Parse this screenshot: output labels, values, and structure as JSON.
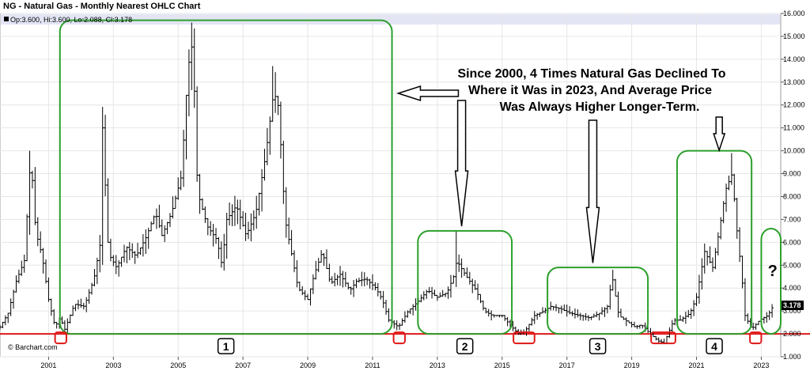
{
  "chart_data": {
    "type": "line",
    "title": "NG - Natural Gas - Monthly Nearest OHLC Chart",
    "ohlc_label": "Op:3.600, Hi:3.600, Lo:2.088, Cl:3.178",
    "source": "© Barchart.com",
    "last_value_label": "3.178",
    "ylim": [
      1.0,
      16.0
    ],
    "xlim": [
      2000.0,
      2024.1
    ],
    "y_ticks": [
      "1.000",
      "2.000",
      "3.000",
      "4.000",
      "5.000",
      "6.000",
      "7.000",
      "8.000",
      "9.000",
      "10.000",
      "11.000",
      "12.000",
      "13.000",
      "14.000",
      "15.000",
      "16.000"
    ],
    "x_ticks": [
      "2001",
      "2003",
      "2005",
      "2007",
      "2009",
      "2011",
      "2013",
      "2015",
      "2017",
      "2019",
      "2021",
      "2023"
    ],
    "grid": true,
    "series": [
      {
        "values": [
          {
            "x": 2000.0,
            "y": 2.3
          },
          {
            "x": 2000.25,
            "y": 2.9
          },
          {
            "x": 2000.5,
            "y": 4.3
          },
          {
            "x": 2000.75,
            "y": 5.2
          },
          {
            "x": 2000.95,
            "y": 9.8
          },
          {
            "x": 2001.1,
            "y": 6.5
          },
          {
            "x": 2001.3,
            "y": 5.4
          },
          {
            "x": 2001.5,
            "y": 3.5
          },
          {
            "x": 2001.7,
            "y": 2.3
          },
          {
            "x": 2001.85,
            "y": 2.7
          },
          {
            "x": 2002.0,
            "y": 2.2
          },
          {
            "x": 2002.3,
            "y": 3.3
          },
          {
            "x": 2002.6,
            "y": 3.2
          },
          {
            "x": 2002.9,
            "y": 4.4
          },
          {
            "x": 2003.1,
            "y": 6.0
          },
          {
            "x": 2003.15,
            "y": 11.5
          },
          {
            "x": 2003.35,
            "y": 5.5
          },
          {
            "x": 2003.6,
            "y": 4.9
          },
          {
            "x": 2003.9,
            "y": 5.8
          },
          {
            "x": 2004.2,
            "y": 5.4
          },
          {
            "x": 2004.5,
            "y": 6.2
          },
          {
            "x": 2004.8,
            "y": 7.3
          },
          {
            "x": 2005.0,
            "y": 6.3
          },
          {
            "x": 2005.3,
            "y": 7.3
          },
          {
            "x": 2005.6,
            "y": 8.9
          },
          {
            "x": 2005.8,
            "y": 13.6
          },
          {
            "x": 2005.95,
            "y": 14.8
          },
          {
            "x": 2006.1,
            "y": 8.2
          },
          {
            "x": 2006.4,
            "y": 6.7
          },
          {
            "x": 2006.7,
            "y": 6.1
          },
          {
            "x": 2006.85,
            "y": 5.0
          },
          {
            "x": 2007.0,
            "y": 7.0
          },
          {
            "x": 2007.3,
            "y": 7.6
          },
          {
            "x": 2007.6,
            "y": 6.3
          },
          {
            "x": 2007.9,
            "y": 7.3
          },
          {
            "x": 2008.2,
            "y": 9.8
          },
          {
            "x": 2008.45,
            "y": 12.6
          },
          {
            "x": 2008.6,
            "y": 11.9
          },
          {
            "x": 2008.8,
            "y": 7.0
          },
          {
            "x": 2009.0,
            "y": 5.5
          },
          {
            "x": 2009.2,
            "y": 4.0
          },
          {
            "x": 2009.5,
            "y": 3.5
          },
          {
            "x": 2009.7,
            "y": 4.6
          },
          {
            "x": 2009.95,
            "y": 5.6
          },
          {
            "x": 2010.2,
            "y": 4.2
          },
          {
            "x": 2010.5,
            "y": 4.6
          },
          {
            "x": 2010.8,
            "y": 3.9
          },
          {
            "x": 2011.0,
            "y": 4.3
          },
          {
            "x": 2011.3,
            "y": 4.4
          },
          {
            "x": 2011.6,
            "y": 4.0
          },
          {
            "x": 2011.8,
            "y": 3.5
          },
          {
            "x": 2012.0,
            "y": 2.6
          },
          {
            "x": 2012.3,
            "y": 2.3
          },
          {
            "x": 2012.6,
            "y": 3.0
          },
          {
            "x": 2012.9,
            "y": 3.4
          },
          {
            "x": 2013.2,
            "y": 3.9
          },
          {
            "x": 2013.5,
            "y": 3.6
          },
          {
            "x": 2013.8,
            "y": 3.8
          },
          {
            "x": 2014.0,
            "y": 4.5
          },
          {
            "x": 2014.1,
            "y": 5.2
          },
          {
            "x": 2014.4,
            "y": 4.5
          },
          {
            "x": 2014.7,
            "y": 3.9
          },
          {
            "x": 2014.95,
            "y": 3.0
          },
          {
            "x": 2015.2,
            "y": 2.8
          },
          {
            "x": 2015.5,
            "y": 2.8
          },
          {
            "x": 2015.8,
            "y": 2.3
          },
          {
            "x": 2016.0,
            "y": 2.0
          },
          {
            "x": 2016.2,
            "y": 2.1
          },
          {
            "x": 2016.5,
            "y": 2.8
          },
          {
            "x": 2016.8,
            "y": 3.0
          },
          {
            "x": 2017.0,
            "y": 3.2
          },
          {
            "x": 2017.3,
            "y": 3.1
          },
          {
            "x": 2017.6,
            "y": 2.9
          },
          {
            "x": 2017.9,
            "y": 2.8
          },
          {
            "x": 2018.2,
            "y": 2.7
          },
          {
            "x": 2018.5,
            "y": 2.9
          },
          {
            "x": 2018.75,
            "y": 3.2
          },
          {
            "x": 2018.9,
            "y": 4.5
          },
          {
            "x": 2019.1,
            "y": 2.8
          },
          {
            "x": 2019.3,
            "y": 2.6
          },
          {
            "x": 2019.6,
            "y": 2.3
          },
          {
            "x": 2019.8,
            "y": 2.4
          },
          {
            "x": 2020.0,
            "y": 2.1
          },
          {
            "x": 2020.3,
            "y": 1.7
          },
          {
            "x": 2020.5,
            "y": 1.6
          },
          {
            "x": 2020.8,
            "y": 2.6
          },
          {
            "x": 2021.0,
            "y": 2.6
          },
          {
            "x": 2021.3,
            "y": 2.9
          },
          {
            "x": 2021.5,
            "y": 3.6
          },
          {
            "x": 2021.75,
            "y": 5.6
          },
          {
            "x": 2022.0,
            "y": 4.9
          },
          {
            "x": 2022.2,
            "y": 6.5
          },
          {
            "x": 2022.4,
            "y": 8.3
          },
          {
            "x": 2022.6,
            "y": 9.0
          },
          {
            "x": 2022.75,
            "y": 6.5
          },
          {
            "x": 2022.9,
            "y": 4.5
          },
          {
            "x": 2023.0,
            "y": 2.8
          },
          {
            "x": 2023.2,
            "y": 2.2
          },
          {
            "x": 2023.45,
            "y": 2.6
          },
          {
            "x": 2023.7,
            "y": 2.8
          },
          {
            "x": 2023.85,
            "y": 3.178
          }
        ]
      }
    ],
    "annotations": {
      "note_lines": [
        "Since 2000, 4 Times Natural Gas Declined To",
        "Where it Was in 2023, And Average Price",
        "Was Always Higher Longer-Term."
      ],
      "support_level": 2.0,
      "boxes": [
        {
          "label": "1",
          "x0": 2001.85,
          "x1": 2012.1,
          "y0": 2.0,
          "y1": 15.7
        },
        {
          "label": "2",
          "x0": 2012.9,
          "x1": 2015.8,
          "y0": 2.0,
          "y1": 6.5
        },
        {
          "label": "3",
          "x0": 2016.9,
          "x1": 2020.0,
          "y0": 2.0,
          "y1": 4.9
        },
        {
          "label": "4",
          "x0": 2020.9,
          "x1": 2023.2,
          "y0": 2.0,
          "y1": 10.0
        },
        {
          "label": "?",
          "x0": 2023.5,
          "x1": 2024.1,
          "y0": 2.0,
          "y1": 6.6
        }
      ],
      "lows": [
        {
          "x0": 2001.7,
          "x1": 2002.05
        },
        {
          "x0": 2012.15,
          "x1": 2012.5
        },
        {
          "x0": 2015.85,
          "x1": 2016.5
        },
        {
          "x0": 2020.1,
          "x1": 2020.85
        },
        {
          "x0": 2023.15,
          "x1": 2023.5
        }
      ],
      "arrows_down": [
        2014.25,
        2018.3,
        2022.2
      ],
      "arrow_left_year": 2012.0
    }
  }
}
